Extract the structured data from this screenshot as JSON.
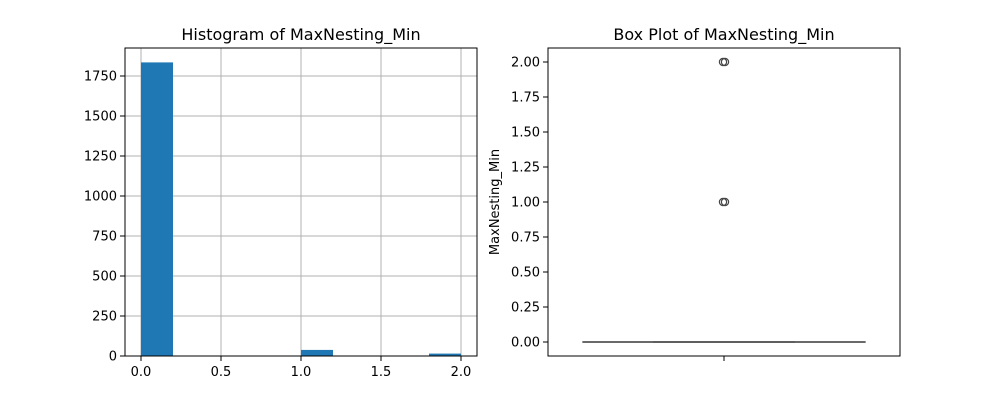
{
  "chart_data": [
    {
      "type": "bar",
      "title": "Histogram of MaxNesting_Min",
      "xlabel": "",
      "ylabel": "",
      "xlim": [
        -0.1,
        2.1
      ],
      "ylim": [
        0,
        1925
      ],
      "grid": true,
      "bar_color": "#1f77b4",
      "bins": [
        {
          "x0": 0.0,
          "x1": 0.2,
          "count": 1835
        },
        {
          "x0": 0.2,
          "x1": 0.4,
          "count": 0
        },
        {
          "x0": 0.4,
          "x1": 0.6,
          "count": 0
        },
        {
          "x0": 0.6,
          "x1": 0.8,
          "count": 0
        },
        {
          "x0": 0.8,
          "x1": 1.0,
          "count": 0
        },
        {
          "x0": 1.0,
          "x1": 1.2,
          "count": 38
        },
        {
          "x0": 1.2,
          "x1": 1.4,
          "count": 0
        },
        {
          "x0": 1.4,
          "x1": 1.6,
          "count": 0
        },
        {
          "x0": 1.6,
          "x1": 1.8,
          "count": 0
        },
        {
          "x0": 1.8,
          "x1": 2.0,
          "count": 15
        }
      ],
      "x_ticks": [
        {
          "value": 0.0,
          "label": "0.0"
        },
        {
          "value": 0.5,
          "label": "0.5"
        },
        {
          "value": 1.0,
          "label": "1.0"
        },
        {
          "value": 1.5,
          "label": "1.5"
        },
        {
          "value": 2.0,
          "label": "2.0"
        }
      ],
      "y_ticks": [
        {
          "value": 0,
          "label": "0"
        },
        {
          "value": 250,
          "label": "250"
        },
        {
          "value": 500,
          "label": "500"
        },
        {
          "value": 750,
          "label": "750"
        },
        {
          "value": 1000,
          "label": "1000"
        },
        {
          "value": 1250,
          "label": "1250"
        },
        {
          "value": 1500,
          "label": "1500"
        },
        {
          "value": 1750,
          "label": "1750"
        }
      ]
    },
    {
      "type": "box",
      "title": "Box Plot of MaxNesting_Min",
      "xlabel": "",
      "ylabel": "MaxNesting_Min",
      "ylim": [
        -0.1,
        2.1
      ],
      "grid": false,
      "line_color": "#555555",
      "box": {
        "q1": 0.0,
        "median": 0.0,
        "q3": 0.0,
        "whisker_low": 0.0,
        "whisker_high": 0.0
      },
      "outliers": [
        1.0,
        2.0
      ],
      "y_ticks": [
        {
          "value": 0.0,
          "label": "0.00"
        },
        {
          "value": 0.25,
          "label": "0.25"
        },
        {
          "value": 0.5,
          "label": "0.50"
        },
        {
          "value": 0.75,
          "label": "0.75"
        },
        {
          "value": 1.0,
          "label": "1.00"
        },
        {
          "value": 1.25,
          "label": "1.25"
        },
        {
          "value": 1.5,
          "label": "1.50"
        },
        {
          "value": 1.75,
          "label": "1.75"
        },
        {
          "value": 2.0,
          "label": "2.00"
        }
      ]
    }
  ]
}
